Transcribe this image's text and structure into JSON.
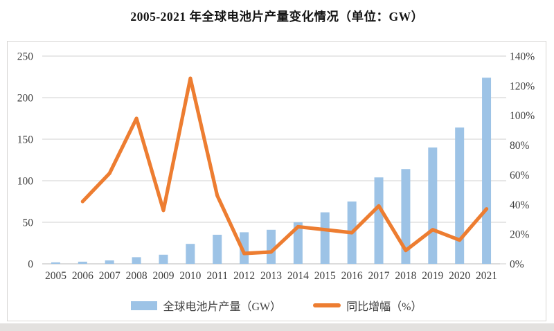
{
  "chart_data": {
    "type": "bar",
    "subtype": "combo-bar-line",
    "title": "2005-2021 年全球电池片产量变化情况（单位：GW）",
    "categories": [
      "2005",
      "2006",
      "2007",
      "2008",
      "2009",
      "2010",
      "2011",
      "2012",
      "2013",
      "2014",
      "2015",
      "2016",
      "2017",
      "2018",
      "2019",
      "2020",
      "2021"
    ],
    "series": [
      {
        "name": "全球电池片产量（GW）",
        "type": "bar",
        "axis": "left",
        "color": "#9DC3E6",
        "values": [
          1.8,
          2.6,
          4.1,
          8,
          11,
          24,
          35,
          38,
          41,
          50,
          62,
          75,
          104,
          114,
          140,
          164,
          224
        ]
      },
      {
        "name": "同比增幅（%）",
        "type": "line",
        "axis": "right",
        "color": "#ED7D31",
        "unit": "%",
        "values": [
          null,
          42,
          61,
          98,
          36,
          125,
          46,
          7,
          8,
          25,
          23,
          21,
          39,
          9,
          23,
          16,
          37
        ]
      }
    ],
    "left_axis": {
      "min": 0,
      "max": 250,
      "step": 50,
      "ticks": [
        "0",
        "50",
        "100",
        "150",
        "200",
        "250"
      ]
    },
    "right_axis": {
      "min": 0,
      "max": 140,
      "step": 20,
      "ticks": [
        "0%",
        "20%",
        "40%",
        "60%",
        "80%",
        "100%",
        "120%",
        "140%"
      ]
    },
    "grid": "horizontal-on",
    "legend_position": "bottom",
    "colors": {
      "grid": "#D9D9D9",
      "baseline": "#C6C6C6",
      "axis_text": "#3D3D3D",
      "box_border": "#D7D5D3",
      "background": "#FFFFFF"
    }
  }
}
